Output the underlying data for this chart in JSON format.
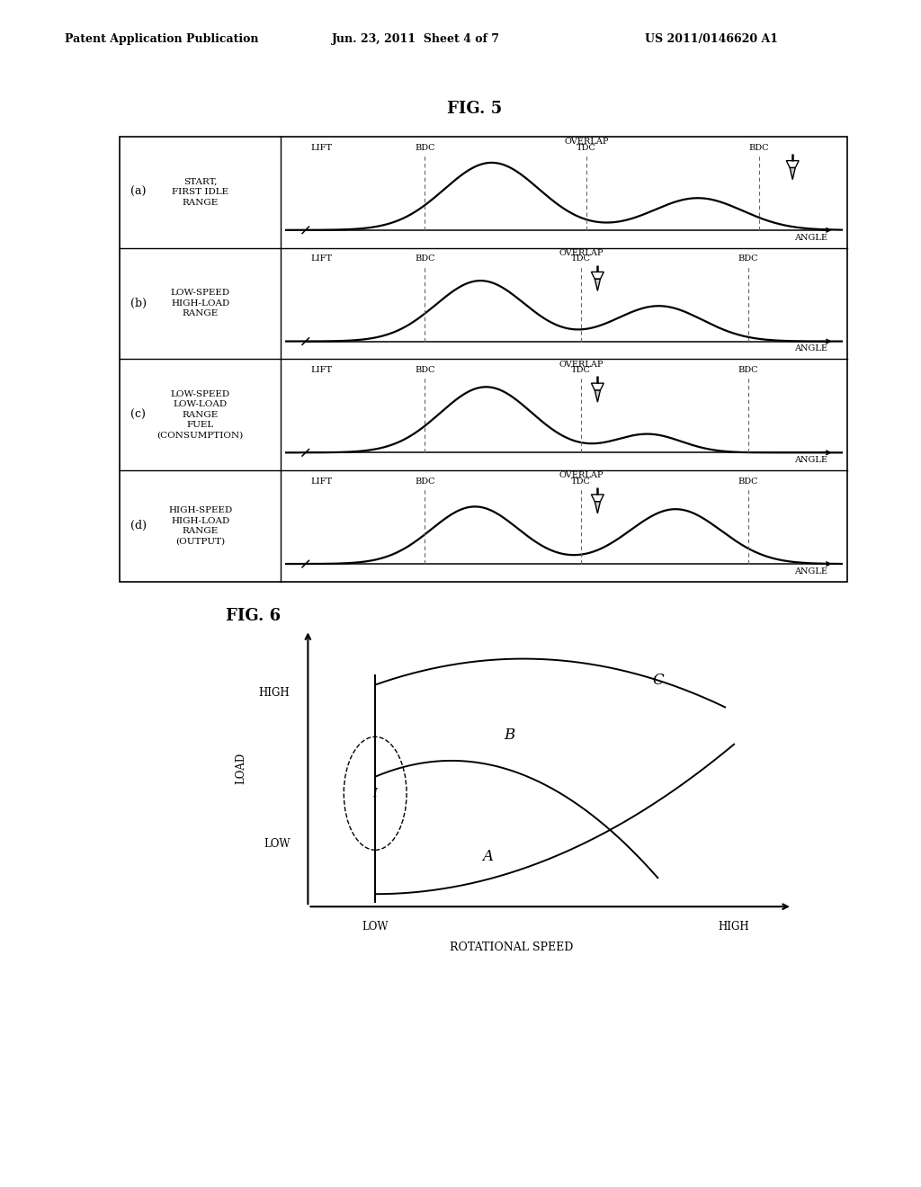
{
  "title_header": "Patent Application Publication",
  "date_header": "Jun. 23, 2011  Sheet 4 of 7",
  "patent_header": "US 2011/0146620 A1",
  "fig5_title": "FIG. 5",
  "fig6_title": "FIG. 6",
  "row_labels": [
    "(a)",
    "(b)",
    "(c)",
    "(d)"
  ],
  "row_descriptions": [
    "START,\nFIRST IDLE\nRANGE",
    "LOW-SPEED\nHIGH-LOAD\nRANGE",
    "LOW-SPEED\nLOW-LOAD\nRANGE\nFUEL\n(CONSUMPTION)",
    "HIGH-SPEED\nHIGH-LOAD\nRANGE\n(OUTPUT)"
  ],
  "angle_label": "ANGLE",
  "load_label": "LOAD",
  "speed_label": "ROTATIONAL SPEED",
  "bg_color": "#ffffff"
}
